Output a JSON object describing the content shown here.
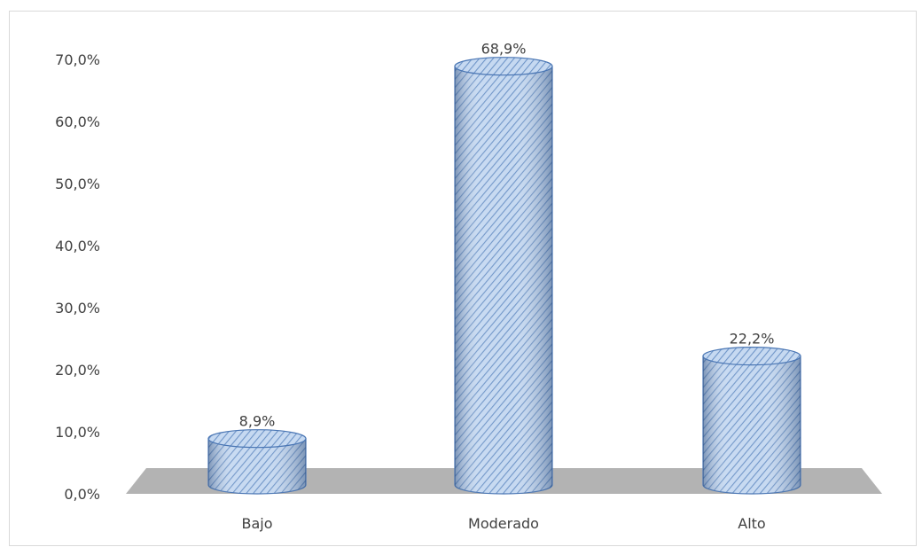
{
  "chart_data": {
    "type": "bar",
    "style": "3d-cylinder",
    "categories": [
      "Bajo",
      "Moderado",
      "Alto"
    ],
    "values": [
      8.9,
      68.9,
      22.2
    ],
    "value_labels": [
      "8,9%",
      "68,9%",
      "22,2%"
    ],
    "y_ticks": [
      "0,0%",
      "10,0%",
      "20,0%",
      "30,0%",
      "40,0%",
      "50,0%",
      "60,0%",
      "70,0%"
    ],
    "ylim": [
      0,
      70
    ],
    "title": "",
    "xlabel": "",
    "ylabel": "",
    "grid": false,
    "legend": "none",
    "colors": {
      "bar_fill": "#c6d9f1",
      "bar_hatch": "#6f95c8",
      "bar_edge": "#4a76b4",
      "floor": "#b3b3b3",
      "text": "#404040"
    }
  }
}
